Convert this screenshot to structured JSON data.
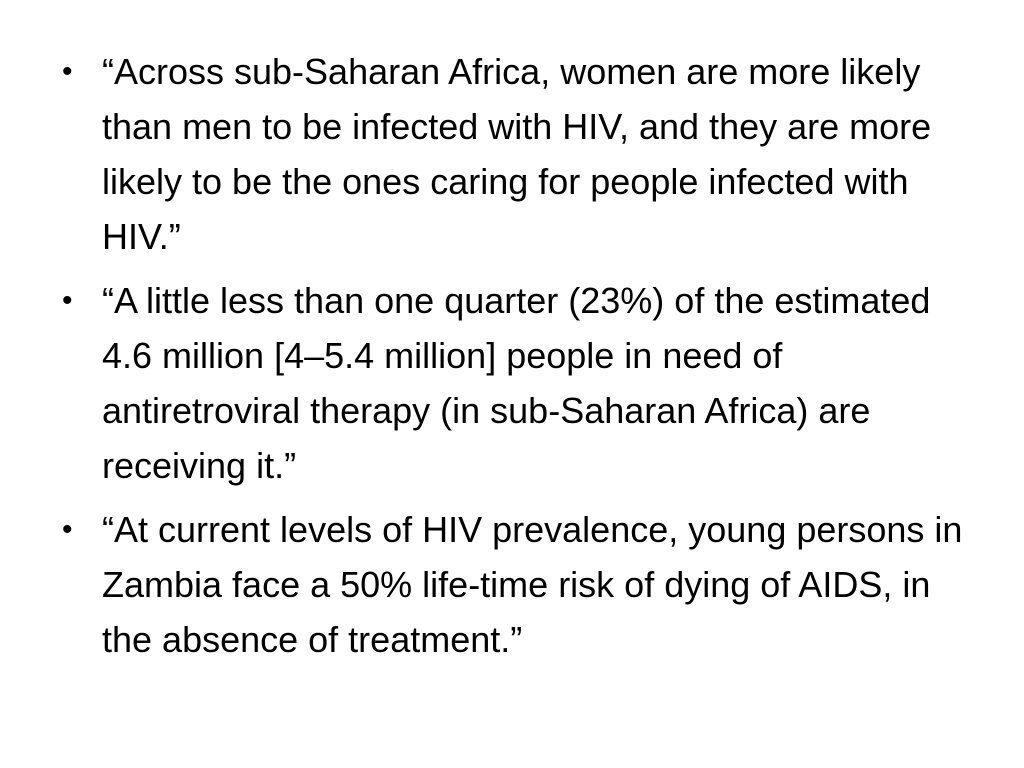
{
  "bullets": [
    {
      "marker": "•",
      "text": "“Across sub-Saharan Africa, women are more likely than men to be infected with HIV, and they are more likely to be the ones caring for people infected with HIV.”"
    },
    {
      "marker": "•",
      "text": "“A little less than one quarter (23%) of the estimated 4.6 million [4–5.4 million] people in need of antiretroviral therapy (in sub-Saharan Africa) are receiving it.”"
    },
    {
      "marker": "•",
      "text": "“At current levels of HIV prevalence, young persons in Zambia face a 50% life-time risk of dying of AIDS, in the absence of treatment.”"
    }
  ]
}
